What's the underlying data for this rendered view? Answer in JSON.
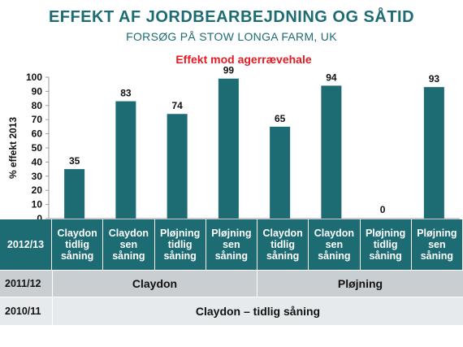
{
  "header": {
    "title": "EFFEKT AF JORDBEARBEJDNING OG SÅTID",
    "subtitle": "FORSØG PÅ STOW LONGA FARM, UK"
  },
  "chart_data": {
    "type": "bar",
    "title": "Effekt mod agerrævehale",
    "xlabel": "",
    "ylabel": "% effekt 2013",
    "ylim": [
      0,
      100
    ],
    "yticks": [
      0,
      10,
      20,
      30,
      40,
      50,
      60,
      70,
      80,
      90,
      100
    ],
    "grid": false,
    "bar_color": "#1d6c73",
    "categories": [
      "Claydon tidlig såning",
      "Claydon sen såning",
      "Pløjning tidlig såning",
      "Pløjning sen såning",
      "Claydon tidlig såning",
      "Claydon sen såning",
      "Pløjning tidlig såning",
      "Pløjning sen såning"
    ],
    "values": [
      35,
      83,
      74,
      99,
      65,
      94,
      0,
      93
    ],
    "data_labels": [
      "35",
      "83",
      "74",
      "99",
      "65",
      "94",
      "0",
      "93"
    ]
  },
  "table": {
    "row_2012": {
      "label": "2012/13",
      "cells": [
        "Claydon\ntidlig\nsåning",
        "Claydon\nsen såning",
        "Pløjning\ntidlig\nsåning",
        "Pløjning\nsen såning",
        "Claydon\ntidlig\nsåning",
        "Claydon\nsen såning",
        "Pløjning\ntidlig\nsåning",
        "Pløjning\nsen såning"
      ]
    },
    "row_2011": {
      "label": "2011/12",
      "left": "Claydon",
      "right": "Pløjning"
    },
    "row_2010": {
      "label": "2010/11",
      "value": "Claydon – tidlig såning"
    }
  },
  "colors": {
    "teal": "#1d6c73",
    "accent_red": "#e31b23",
    "gray_dark": "#c9ced2",
    "gray_light": "#e7eaec"
  }
}
